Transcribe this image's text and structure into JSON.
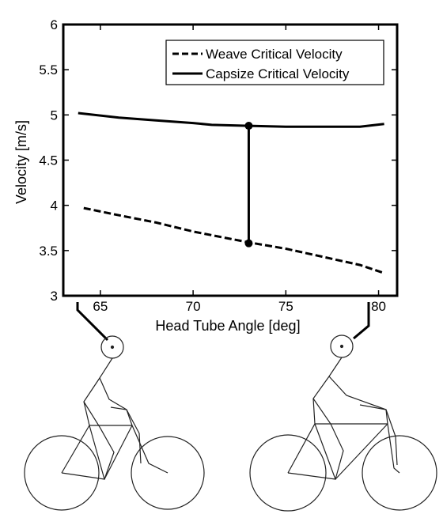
{
  "chart_data": {
    "type": "line",
    "title": "",
    "xlabel": "Head Tube Angle [deg]",
    "ylabel": "Velocity [m/s]",
    "xlim": [
      63,
      81
    ],
    "ylim": [
      3,
      6
    ],
    "xticks": [
      65,
      70,
      75,
      80
    ],
    "yticks": [
      3,
      3.5,
      4,
      4.5,
      5,
      5.5,
      6
    ],
    "grid": false,
    "legend_position": "top-right",
    "series": [
      {
        "name": "Weave Critical Velocity",
        "style": "dashed",
        "color": "#000000",
        "points": [
          [
            64.1,
            3.97
          ],
          [
            66,
            3.89
          ],
          [
            68,
            3.81
          ],
          [
            70,
            3.71
          ],
          [
            72,
            3.63
          ],
          [
            73,
            3.59
          ],
          [
            75,
            3.52
          ],
          [
            77,
            3.43
          ],
          [
            79,
            3.34
          ],
          [
            80.3,
            3.25
          ]
        ]
      },
      {
        "name": "Capsize Critical Velocity",
        "style": "solid",
        "color": "#000000",
        "points": [
          [
            63.8,
            5.02
          ],
          [
            66,
            4.97
          ],
          [
            68,
            4.94
          ],
          [
            70,
            4.91
          ],
          [
            71,
            4.89
          ],
          [
            73,
            4.88
          ],
          [
            75,
            4.87
          ],
          [
            77,
            4.87
          ],
          [
            79,
            4.87
          ],
          [
            80.3,
            4.9
          ]
        ]
      }
    ],
    "annotations": [
      {
        "type": "vertical-connector",
        "x": 73,
        "y_from": 3.58,
        "y_to": 4.88
      }
    ]
  }
}
